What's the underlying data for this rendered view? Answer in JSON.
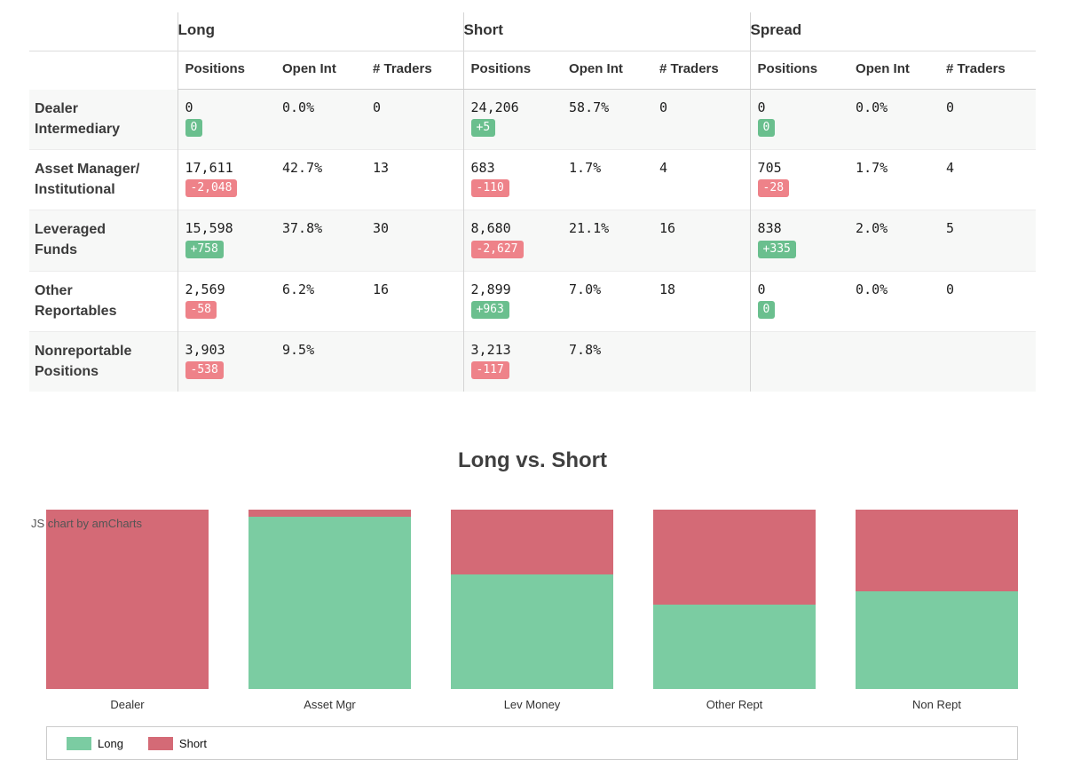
{
  "colors": {
    "bar_long": "#7bcca2",
    "bar_short": "#d46a76",
    "badge_green": "#6abf8e",
    "badge_red": "#ee8289",
    "stripe": "#f7f8f7"
  },
  "table": {
    "groups": [
      "Long",
      "Short",
      "Spread"
    ],
    "sub_headers": [
      "Positions",
      "Open Int",
      "# Traders"
    ],
    "rows": [
      {
        "label_lines": [
          "Dealer",
          "Intermediary"
        ],
        "cells": [
          {
            "value": "0",
            "badge": "0",
            "badge_type": "green"
          },
          {
            "value": "0.0%"
          },
          {
            "value": "0"
          },
          {
            "value": "24,206",
            "badge": "+5",
            "badge_type": "green"
          },
          {
            "value": "58.7%"
          },
          {
            "value": "0"
          },
          {
            "value": "0",
            "badge": "0",
            "badge_type": "green"
          },
          {
            "value": "0.0%"
          },
          {
            "value": "0"
          }
        ]
      },
      {
        "label_lines": [
          "Asset Manager/",
          "Institutional"
        ],
        "cells": [
          {
            "value": "17,611",
            "badge": "-2,048",
            "badge_type": "red"
          },
          {
            "value": "42.7%"
          },
          {
            "value": "13"
          },
          {
            "value": "683",
            "badge": "-110",
            "badge_type": "red"
          },
          {
            "value": "1.7%"
          },
          {
            "value": "4"
          },
          {
            "value": "705",
            "badge": "-28",
            "badge_type": "red"
          },
          {
            "value": "1.7%"
          },
          {
            "value": "4"
          }
        ]
      },
      {
        "label_lines": [
          "Leveraged",
          "Funds"
        ],
        "cells": [
          {
            "value": "15,598",
            "badge": "+758",
            "badge_type": "green"
          },
          {
            "value": "37.8%"
          },
          {
            "value": "30"
          },
          {
            "value": "8,680",
            "badge": "-2,627",
            "badge_type": "red"
          },
          {
            "value": "21.1%"
          },
          {
            "value": "16"
          },
          {
            "value": "838",
            "badge": "+335",
            "badge_type": "green"
          },
          {
            "value": "2.0%"
          },
          {
            "value": "5"
          }
        ]
      },
      {
        "label_lines": [
          "Other",
          "Reportables"
        ],
        "cells": [
          {
            "value": "2,569",
            "badge": "-58",
            "badge_type": "red"
          },
          {
            "value": "6.2%"
          },
          {
            "value": "16"
          },
          {
            "value": "2,899",
            "badge": "+963",
            "badge_type": "green"
          },
          {
            "value": "7.0%"
          },
          {
            "value": "18"
          },
          {
            "value": "0",
            "badge": "0",
            "badge_type": "green"
          },
          {
            "value": "0.0%"
          },
          {
            "value": "0"
          }
        ]
      },
      {
        "label_lines": [
          "Nonreportable",
          "Positions"
        ],
        "cells": [
          {
            "value": "3,903",
            "badge": "-538",
            "badge_type": "red"
          },
          {
            "value": "9.5%"
          },
          {},
          {
            "value": "3,213",
            "badge": "-117",
            "badge_type": "red"
          },
          {
            "value": "7.8%"
          },
          {},
          {},
          {},
          {}
        ]
      }
    ]
  },
  "chart_data": {
    "type": "bar",
    "stacked": "100%",
    "title": "Long vs. Short",
    "categories": [
      "Dealer",
      "Asset Mgr",
      "Lev Money",
      "Other Rept",
      "Non Rept"
    ],
    "series": [
      {
        "name": "Long",
        "color": "#7bcca2",
        "values": [
          0,
          17611,
          15598,
          2569,
          3903
        ]
      },
      {
        "name": "Short",
        "color": "#d46a76",
        "values": [
          24206,
          683,
          8680,
          2899,
          3213
        ]
      }
    ],
    "legend_position": "bottom",
    "watermark": "JS chart by amCharts"
  }
}
